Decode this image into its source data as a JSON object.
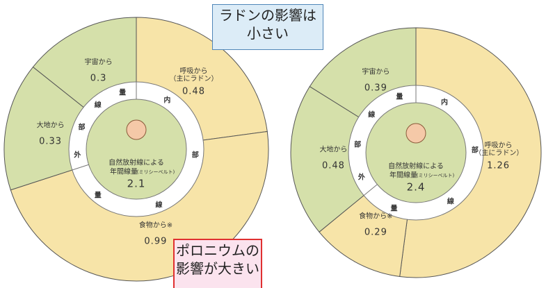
{
  "chart_data": [
    {
      "type": "pie",
      "categories": [
        "呼吸から\n（主にラドン）",
        "食物から※",
        "大地から",
        "宇宙から"
      ],
      "values": [
        0.48,
        0.99,
        0.33,
        0.3
      ],
      "colors": [
        "#f7e4a8",
        "#f7e4a8",
        "#d5e0aa",
        "#d5e0aa"
      ],
      "center_label": "自然放射線による",
      "center_label_2": "年間線量",
      "center_unit": "(ミリシーベルト)",
      "total": 2.1,
      "external_chars": [
        "外",
        "部",
        "線",
        "量"
      ],
      "internal_chars": [
        "内",
        "部",
        "線",
        "量"
      ]
    },
    {
      "type": "pie",
      "categories": [
        "呼吸から\n（主にラドン）",
        "食物から※",
        "大地から",
        "宇宙から"
      ],
      "values": [
        1.26,
        0.29,
        0.48,
        0.39
      ],
      "colors": [
        "#f7e4a8",
        "#f7e4a8",
        "#d5e0aa",
        "#d5e0aa"
      ],
      "center_label": "自然放射線による",
      "center_label_2": "年間線量",
      "center_unit": "(ミリシーベルト)",
      "total": 2.4,
      "external_chars": [
        "外",
        "部",
        "線",
        "量"
      ],
      "internal_chars": [
        "内",
        "部",
        "線",
        "量"
      ]
    }
  ],
  "annotations": {
    "radon": "ラドンの影響は\n小さい",
    "polonium": "ポロニウムの\n影響が大きい"
  }
}
